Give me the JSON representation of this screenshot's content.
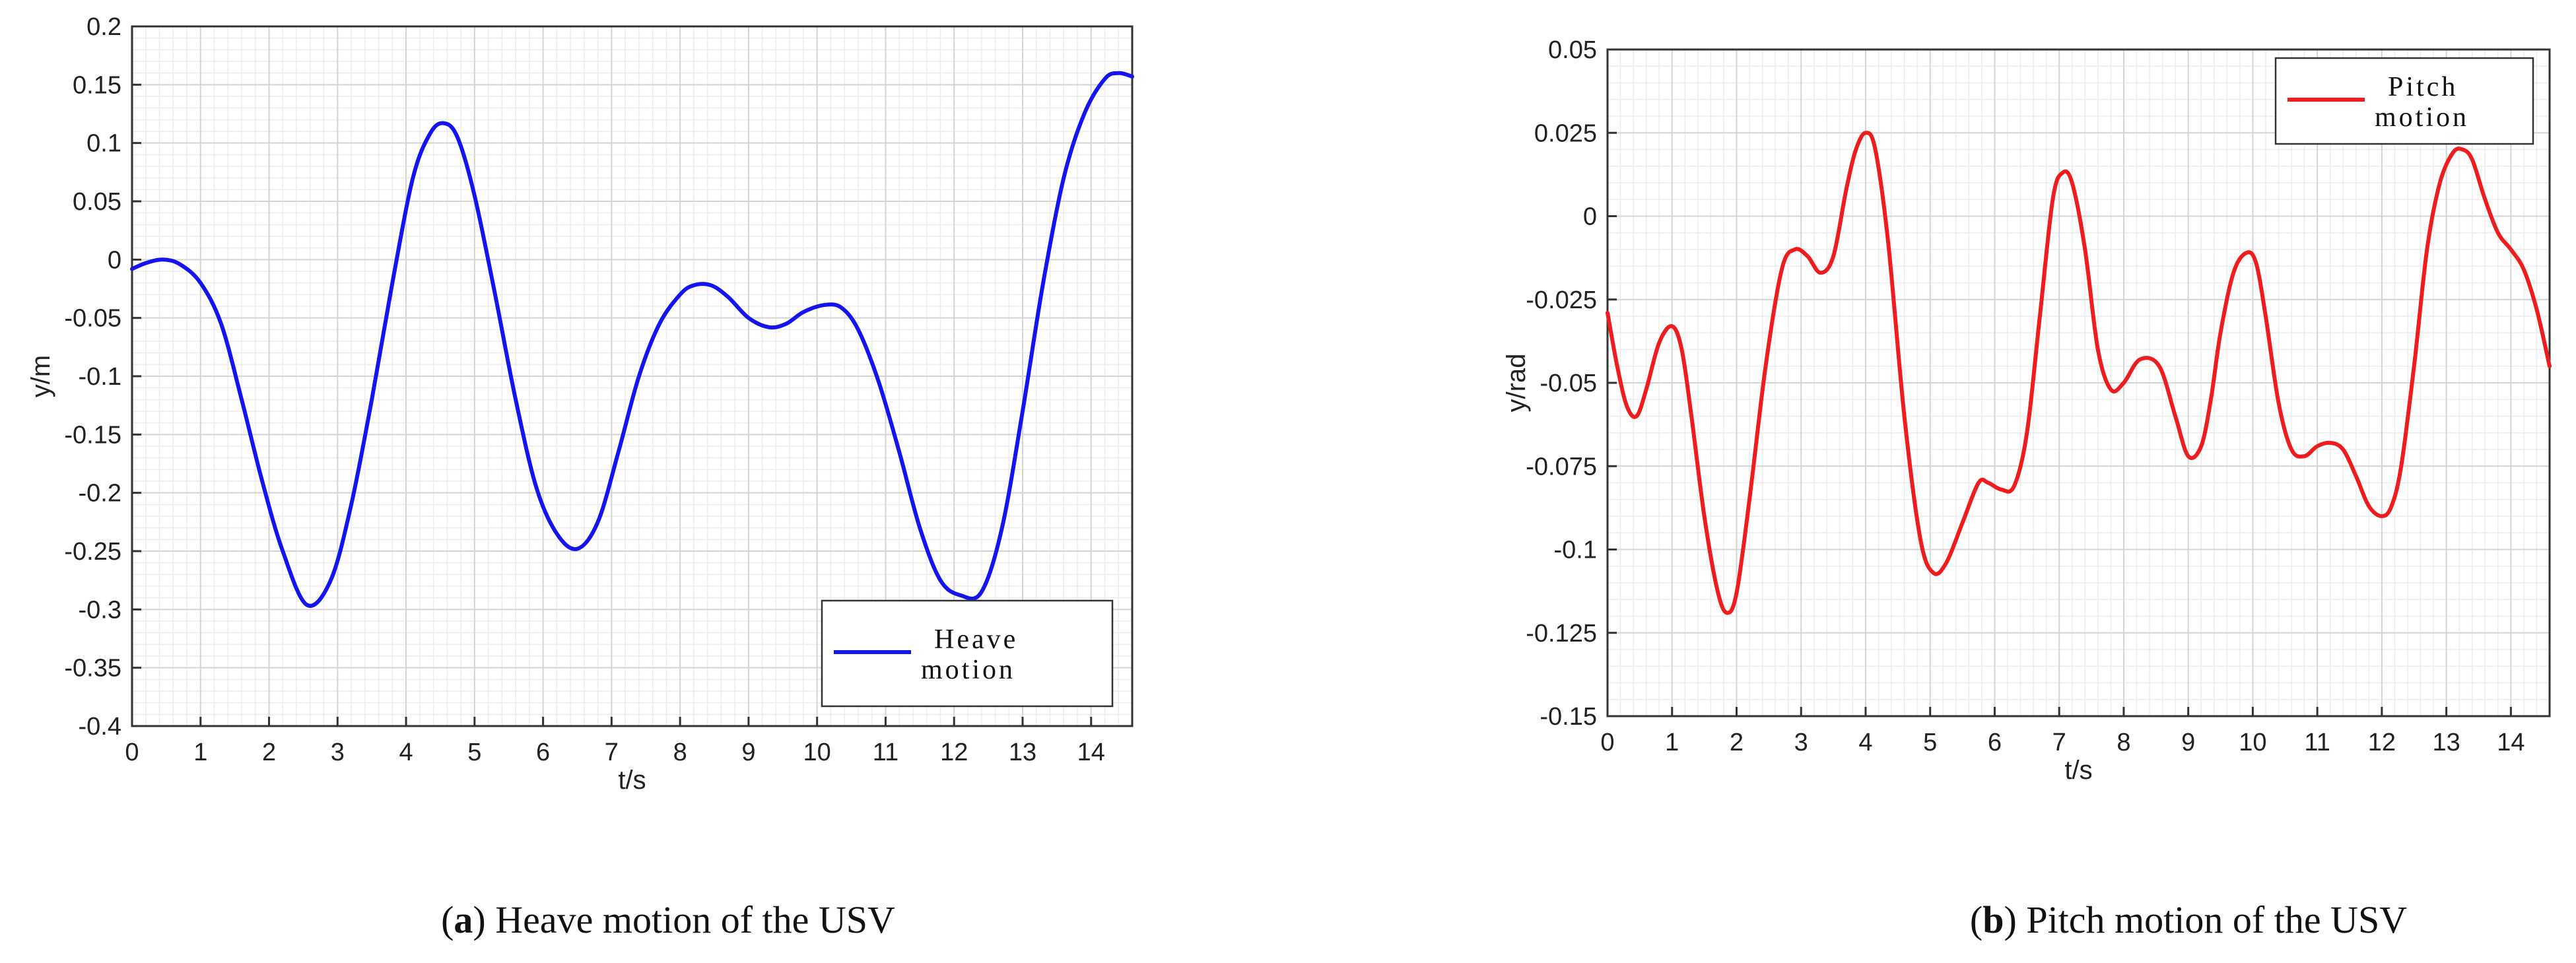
{
  "panels": [
    {
      "caption_letter": "a",
      "caption_text": "Heave motion of the USV",
      "chart_data": {
        "type": "line",
        "xlabel": "t/s",
        "ylabel": "y/m",
        "xlim": [
          0,
          14.6
        ],
        "ylim": [
          -0.4,
          0.2
        ],
        "x_ticks": [
          0,
          1,
          2,
          3,
          4,
          5,
          6,
          7,
          8,
          9,
          10,
          11,
          12,
          13,
          14
        ],
        "y_ticks": [
          0.2,
          0.15,
          0.1,
          0.05,
          0,
          -0.05,
          -0.1,
          -0.15,
          -0.2,
          -0.25,
          -0.3,
          -0.35,
          -0.4
        ],
        "y_tick_labels": [
          "0.2",
          "0.15",
          "0.1",
          "0.05",
          "0",
          "-0.05",
          "-0.1",
          "-0.15",
          "-0.2",
          "-0.25",
          "-0.3",
          "-0.35",
          "-0.4"
        ],
        "grid": true,
        "minor_grid": true,
        "legend_position": "bottom-right",
        "series": [
          {
            "name": "Heave motion",
            "legend_lines": [
              "Heave",
              "motion"
            ],
            "color": "#1414f0",
            "x": [
              0,
              0.2,
              0.45,
              0.7,
              1.0,
              1.3,
              1.6,
              1.9,
              2.2,
              2.55,
              2.9,
              3.2,
              3.5,
              3.8,
              4.1,
              4.35,
              4.55,
              4.75,
              5.0,
              5.3,
              5.6,
              5.9,
              6.2,
              6.5,
              6.8,
              7.1,
              7.4,
              7.7,
              8.0,
              8.2,
              8.45,
              8.7,
              9.0,
              9.3,
              9.55,
              9.8,
              10.1,
              10.35,
              10.6,
              10.9,
              11.2,
              11.5,
              11.8,
              12.1,
              12.4,
              12.7,
              13.0,
              13.3,
              13.6,
              13.9,
              14.2,
              14.4,
              14.6
            ],
            "y": [
              -0.008,
              -0.003,
              0.0,
              -0.004,
              -0.02,
              -0.055,
              -0.12,
              -0.19,
              -0.25,
              -0.296,
              -0.275,
              -0.21,
              -0.12,
              -0.02,
              0.07,
              0.108,
              0.117,
              0.105,
              0.055,
              -0.03,
              -0.12,
              -0.195,
              -0.235,
              -0.248,
              -0.225,
              -0.165,
              -0.1,
              -0.055,
              -0.03,
              -0.022,
              -0.022,
              -0.032,
              -0.05,
              -0.058,
              -0.055,
              -0.045,
              -0.039,
              -0.041,
              -0.06,
              -0.105,
              -0.165,
              -0.23,
              -0.275,
              -0.288,
              -0.285,
              -0.23,
              -0.13,
              -0.02,
              0.07,
              0.125,
              0.155,
              0.16,
              0.157
            ]
          }
        ]
      }
    },
    {
      "caption_letter": "b",
      "caption_text": "Pitch motion of the USV",
      "chart_data": {
        "type": "line",
        "xlabel": "t/s",
        "ylabel": "y/rad",
        "xlim": [
          0,
          14.6
        ],
        "ylim": [
          -0.15,
          0.05
        ],
        "x_ticks": [
          0,
          1,
          2,
          3,
          4,
          5,
          6,
          7,
          8,
          9,
          10,
          11,
          12,
          13,
          14
        ],
        "y_ticks": [
          0.05,
          0.025,
          0,
          -0.025,
          -0.05,
          -0.075,
          -0.1,
          -0.125,
          -0.15
        ],
        "y_tick_labels": [
          "0.05",
          "0.025",
          "0",
          "-0.025",
          "-0.05",
          "-0.075",
          "-0.1",
          "-0.125",
          "-0.15"
        ],
        "grid": true,
        "minor_grid": true,
        "legend_position": "top-right",
        "series": [
          {
            "name": "Pitch motion",
            "legend_lines": [
              "Pitch",
              "motion"
            ],
            "color": "#ee1c1c",
            "x": [
              0,
              0.15,
              0.3,
              0.45,
              0.6,
              0.8,
              1.0,
              1.15,
              1.3,
              1.5,
              1.7,
              1.85,
              2.0,
              2.2,
              2.45,
              2.7,
              2.9,
              3.1,
              3.3,
              3.5,
              3.7,
              3.85,
              4.0,
              4.15,
              4.35,
              4.6,
              4.85,
              5.05,
              5.25,
              5.5,
              5.75,
              5.9,
              6.1,
              6.3,
              6.5,
              6.7,
              6.9,
              7.05,
              7.2,
              7.4,
              7.6,
              7.8,
              8.0,
              8.25,
              8.55,
              8.8,
              9.0,
              9.2,
              9.35,
              9.5,
              9.7,
              9.9,
              10.05,
              10.2,
              10.4,
              10.6,
              10.8,
              11.0,
              11.2,
              11.4,
              11.6,
              11.8,
              12.0,
              12.15,
              12.3,
              12.5,
              12.7,
              12.9,
              13.1,
              13.25,
              13.4,
              13.6,
              13.8,
              14.0,
              14.2,
              14.4,
              14.6
            ],
            "y": [
              -0.029,
              -0.045,
              -0.057,
              -0.06,
              -0.052,
              -0.038,
              -0.033,
              -0.04,
              -0.06,
              -0.09,
              -0.112,
              -0.119,
              -0.113,
              -0.085,
              -0.045,
              -0.016,
              -0.01,
              -0.012,
              -0.017,
              -0.012,
              0.008,
              0.02,
              0.025,
              0.02,
              -0.008,
              -0.06,
              -0.097,
              -0.107,
              -0.104,
              -0.092,
              -0.08,
              -0.08,
              -0.082,
              -0.081,
              -0.065,
              -0.03,
              0.005,
              0.013,
              0.01,
              -0.01,
              -0.04,
              -0.052,
              -0.05,
              -0.043,
              -0.045,
              -0.06,
              -0.072,
              -0.069,
              -0.055,
              -0.035,
              -0.017,
              -0.011,
              -0.014,
              -0.03,
              -0.056,
              -0.07,
              -0.072,
              -0.069,
              -0.068,
              -0.07,
              -0.078,
              -0.087,
              -0.09,
              -0.087,
              -0.075,
              -0.045,
              -0.01,
              0.01,
              0.019,
              0.02,
              0.017,
              0.005,
              -0.005,
              -0.01,
              -0.016,
              -0.028,
              -0.045
            ]
          }
        ]
      }
    }
  ]
}
